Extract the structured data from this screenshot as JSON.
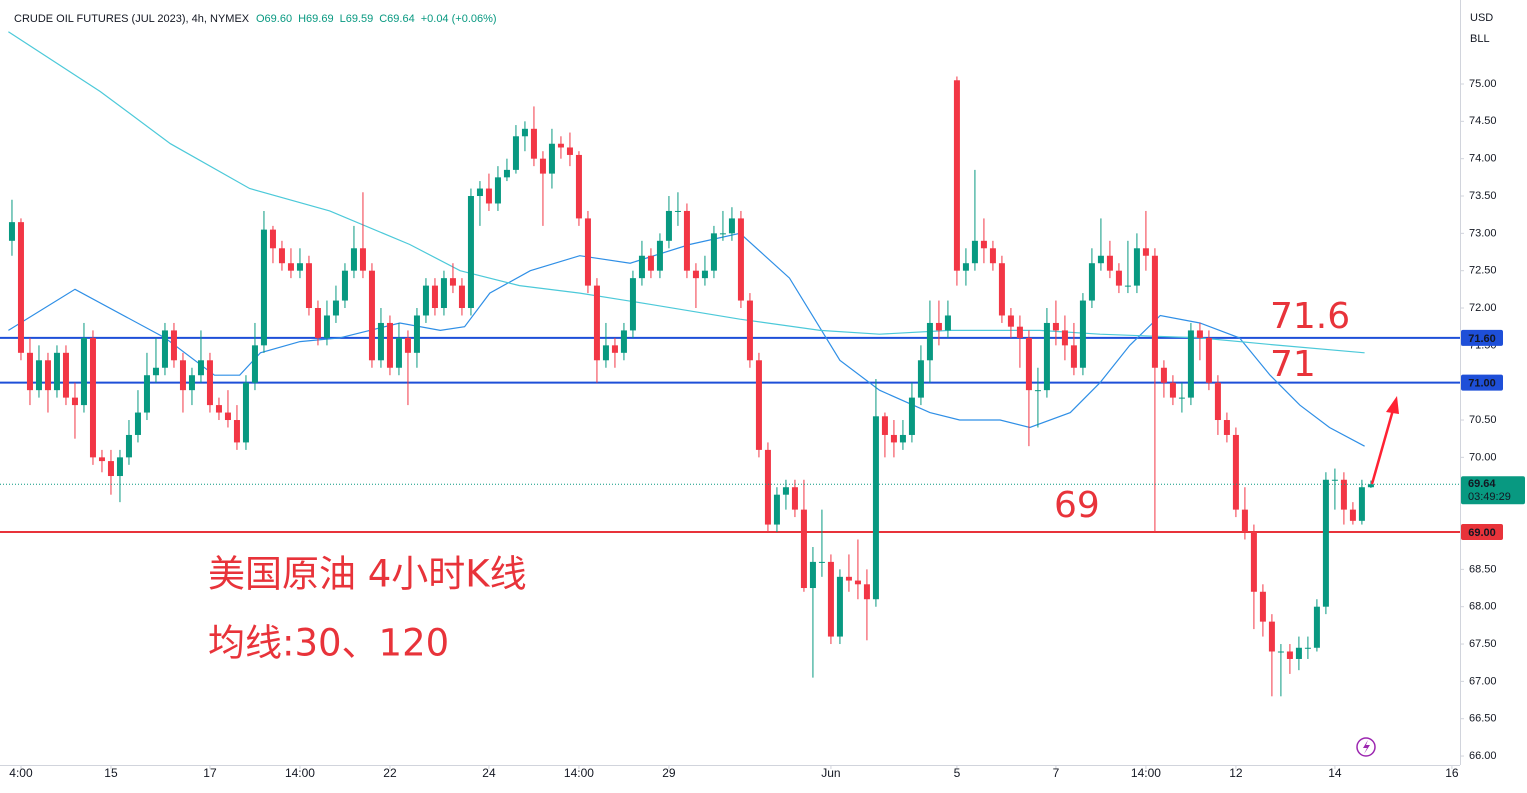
{
  "chart_data": {
    "type": "candlestick",
    "title": "CRUDE OIL FUTURES (JUL 2023), 4h, NYMEX",
    "ohlc_labels": [
      "O69.60",
      "H69.69",
      "L69.59",
      "C69.64",
      "+0.04 (+0.06%)"
    ],
    "currency": "USD",
    "unit": "BLL",
    "up_color": "#089981",
    "down_color": "#f23645",
    "xlim": [
      -1.33,
      160.9
    ],
    "xticks": [
      {
        "value": 1,
        "label": "4:00"
      },
      {
        "value": 11,
        "label": "15"
      },
      {
        "value": 22,
        "label": "17"
      },
      {
        "value": 32,
        "label": "14:00"
      },
      {
        "value": 42,
        "label": "22"
      },
      {
        "value": 53,
        "label": "24"
      },
      {
        "value": 63,
        "label": "14:00"
      },
      {
        "value": 73,
        "label": "29"
      },
      {
        "value": 91,
        "label": "Jun"
      },
      {
        "value": 105,
        "label": "5"
      },
      {
        "value": 116,
        "label": "7"
      },
      {
        "value": 126,
        "label": "14:00"
      },
      {
        "value": 136,
        "label": "12"
      },
      {
        "value": 147,
        "label": "14"
      },
      {
        "value": 160,
        "label": "16"
      }
    ],
    "ylim": [
      65.88,
      76.125
    ],
    "yticks": [
      {
        "value": 66,
        "label": "66.00"
      },
      {
        "value": 66.5,
        "label": "66.50"
      },
      {
        "value": 67,
        "label": "67.00"
      },
      {
        "value": 67.5,
        "label": "67.50"
      },
      {
        "value": 68,
        "label": "68.00"
      },
      {
        "value": 68.5,
        "label": "68.50"
      },
      {
        "value": 69,
        "label": "69.00"
      },
      {
        "value": 69.5,
        "label": "69.50"
      },
      {
        "value": 70,
        "label": "70.00"
      },
      {
        "value": 70.5,
        "label": "70.50"
      },
      {
        "value": 71,
        "label": "71.00"
      },
      {
        "value": 71.5,
        "label": "71.50"
      },
      {
        "value": 72,
        "label": "72.00"
      },
      {
        "value": 72.5,
        "label": "72.50"
      },
      {
        "value": 73,
        "label": "73.00"
      },
      {
        "value": 73.5,
        "label": "73.50"
      },
      {
        "value": 74,
        "label": "74.00"
      },
      {
        "value": 74.5,
        "label": "74.50"
      },
      {
        "value": 75,
        "label": "75.00"
      }
    ],
    "grid": false,
    "candles": [
      [
        72.9,
        73.45,
        72.7,
        73.15
      ],
      [
        73.15,
        73.2,
        71.3,
        71.4
      ],
      [
        71.4,
        71.6,
        70.7,
        70.9
      ],
      [
        70.9,
        71.5,
        70.8,
        71.3
      ],
      [
        71.3,
        71.4,
        70.6,
        70.9
      ],
      [
        70.9,
        71.5,
        70.8,
        71.4
      ],
      [
        71.4,
        71.5,
        70.7,
        70.8
      ],
      [
        70.8,
        71.0,
        70.25,
        70.7
      ],
      [
        70.7,
        71.8,
        70.6,
        71.6
      ],
      [
        71.6,
        71.7,
        69.9,
        70.0
      ],
      [
        70.0,
        70.1,
        69.8,
        69.95
      ],
      [
        69.95,
        70.1,
        69.5,
        69.75
      ],
      [
        69.75,
        70.1,
        69.4,
        70.0
      ],
      [
        70.0,
        70.5,
        69.9,
        70.3
      ],
      [
        70.3,
        70.9,
        70.2,
        70.6
      ],
      [
        70.6,
        71.4,
        70.5,
        71.1
      ],
      [
        71.1,
        71.6,
        71.0,
        71.2
      ],
      [
        71.2,
        71.8,
        71.1,
        71.7
      ],
      [
        71.7,
        71.8,
        71.2,
        71.3
      ],
      [
        71.3,
        71.4,
        70.6,
        70.9
      ],
      [
        70.9,
        71.2,
        70.7,
        71.1
      ],
      [
        71.1,
        71.7,
        71.0,
        71.3
      ],
      [
        71.3,
        71.4,
        70.6,
        70.7
      ],
      [
        70.7,
        70.8,
        70.5,
        70.6
      ],
      [
        70.6,
        70.9,
        70.4,
        70.5
      ],
      [
        70.5,
        70.7,
        70.1,
        70.2
      ],
      [
        70.2,
        71.1,
        70.1,
        71.0
      ],
      [
        71.0,
        71.8,
        70.9,
        71.5
      ],
      [
        71.5,
        73.3,
        71.4,
        73.05
      ],
      [
        73.05,
        73.1,
        72.6,
        72.8
      ],
      [
        72.8,
        72.9,
        72.5,
        72.6
      ],
      [
        72.6,
        72.8,
        72.4,
        72.5
      ],
      [
        72.5,
        72.8,
        72.4,
        72.6
      ],
      [
        72.6,
        72.7,
        71.9,
        72.0
      ],
      [
        72.0,
        72.1,
        71.5,
        71.6
      ],
      [
        71.6,
        72.1,
        71.5,
        71.9
      ],
      [
        71.9,
        72.3,
        71.8,
        72.1
      ],
      [
        72.1,
        72.6,
        72.0,
        72.5
      ],
      [
        72.5,
        73.1,
        72.4,
        72.8
      ],
      [
        72.8,
        73.55,
        72.4,
        72.5
      ],
      [
        72.5,
        72.6,
        71.2,
        71.3
      ],
      [
        71.3,
        72.0,
        71.2,
        71.8
      ],
      [
        71.8,
        71.9,
        71.1,
        71.2
      ],
      [
        71.2,
        71.8,
        71.1,
        71.6
      ],
      [
        71.6,
        71.7,
        70.7,
        71.4
      ],
      [
        71.4,
        72.0,
        71.2,
        71.9
      ],
      [
        71.9,
        72.4,
        71.8,
        72.3
      ],
      [
        72.3,
        72.4,
        71.9,
        72.0
      ],
      [
        72.0,
        72.5,
        71.9,
        72.4
      ],
      [
        72.4,
        72.6,
        72.2,
        72.3
      ],
      [
        72.3,
        72.4,
        71.9,
        72.0
      ],
      [
        72.0,
        73.6,
        71.9,
        73.5
      ],
      [
        73.5,
        73.7,
        73.1,
        73.6
      ],
      [
        73.6,
        73.8,
        73.3,
        73.4
      ],
      [
        73.4,
        73.9,
        73.3,
        73.75
      ],
      [
        73.75,
        74.0,
        73.7,
        73.85
      ],
      [
        73.85,
        74.45,
        73.8,
        74.3
      ],
      [
        74.3,
        74.5,
        74.1,
        74.4
      ],
      [
        74.4,
        74.7,
        73.9,
        74.0
      ],
      [
        74.0,
        74.1,
        73.1,
        73.8
      ],
      [
        73.8,
        74.4,
        73.6,
        74.2
      ],
      [
        74.2,
        74.3,
        74.0,
        74.15
      ],
      [
        74.15,
        74.35,
        73.9,
        74.05
      ],
      [
        74.05,
        74.1,
        73.1,
        73.2
      ],
      [
        73.2,
        73.3,
        72.2,
        72.3
      ],
      [
        72.3,
        72.4,
        71.0,
        71.3
      ],
      [
        71.3,
        71.8,
        71.2,
        71.5
      ],
      [
        71.5,
        71.6,
        71.2,
        71.4
      ],
      [
        71.4,
        71.8,
        71.3,
        71.7
      ],
      [
        71.7,
        72.5,
        71.6,
        72.4
      ],
      [
        72.4,
        72.9,
        72.3,
        72.7
      ],
      [
        72.7,
        72.8,
        72.4,
        72.5
      ],
      [
        72.5,
        73.0,
        72.4,
        72.9
      ],
      [
        72.9,
        73.5,
        72.8,
        73.3
      ],
      [
        73.3,
        73.55,
        73.1,
        73.3
      ],
      [
        73.3,
        73.4,
        72.4,
        72.5
      ],
      [
        72.5,
        72.6,
        72.0,
        72.4
      ],
      [
        72.4,
        72.7,
        72.3,
        72.5
      ],
      [
        72.5,
        73.1,
        72.4,
        73.0
      ],
      [
        73.0,
        73.3,
        72.9,
        73.0
      ],
      [
        73.0,
        73.35,
        72.9,
        73.2
      ],
      [
        73.2,
        73.3,
        72.0,
        72.1
      ],
      [
        72.1,
        72.2,
        71.2,
        71.3
      ],
      [
        71.3,
        71.4,
        70.0,
        70.1
      ],
      [
        70.1,
        70.2,
        69.0,
        69.1
      ],
      [
        69.1,
        69.6,
        69.0,
        69.5
      ],
      [
        69.5,
        69.7,
        69.3,
        69.6
      ],
      [
        69.6,
        69.7,
        69.2,
        69.3
      ],
      [
        69.3,
        69.7,
        68.2,
        68.25
      ],
      [
        68.25,
        68.8,
        67.05,
        68.6
      ],
      [
        68.6,
        69.3,
        68.4,
        68.6
      ],
      [
        68.6,
        68.7,
        67.5,
        67.6
      ],
      [
        67.6,
        68.5,
        67.5,
        68.4
      ],
      [
        68.4,
        68.7,
        68.2,
        68.35
      ],
      [
        68.35,
        68.9,
        68.1,
        68.3
      ],
      [
        68.3,
        68.5,
        67.55,
        68.1
      ],
      [
        68.1,
        71.05,
        68.0,
        70.55
      ],
      [
        70.55,
        70.6,
        70.0,
        70.3
      ],
      [
        70.3,
        70.5,
        70.0,
        70.2
      ],
      [
        70.2,
        70.5,
        70.1,
        70.3
      ],
      [
        70.3,
        71.0,
        70.2,
        70.8
      ],
      [
        70.8,
        71.5,
        70.7,
        71.3
      ],
      [
        71.3,
        72.1,
        71.0,
        71.8
      ],
      [
        71.8,
        72.1,
        71.5,
        71.7
      ],
      [
        71.7,
        72.1,
        71.6,
        71.9
      ],
      [
        75.05,
        75.1,
        72.3,
        72.5
      ],
      [
        72.5,
        72.8,
        72.3,
        72.6
      ],
      [
        72.6,
        73.85,
        72.5,
        72.9
      ],
      [
        72.9,
        73.2,
        72.6,
        72.8
      ],
      [
        72.8,
        72.9,
        72.5,
        72.6
      ],
      [
        72.6,
        72.7,
        71.8,
        71.9
      ],
      [
        71.9,
        72.0,
        71.6,
        71.75
      ],
      [
        71.75,
        71.9,
        71.2,
        71.6
      ],
      [
        71.6,
        71.7,
        70.15,
        70.9
      ],
      [
        70.9,
        71.2,
        70.4,
        70.9
      ],
      [
        70.9,
        72.0,
        70.8,
        71.8
      ],
      [
        71.8,
        72.1,
        71.5,
        71.7
      ],
      [
        71.7,
        71.9,
        71.3,
        71.5
      ],
      [
        71.5,
        71.8,
        71.1,
        71.2
      ],
      [
        71.2,
        72.2,
        71.1,
        72.1
      ],
      [
        72.1,
        72.8,
        72.0,
        72.6
      ],
      [
        72.6,
        73.2,
        72.5,
        72.7
      ],
      [
        72.7,
        72.9,
        72.4,
        72.5
      ],
      [
        72.5,
        72.6,
        72.2,
        72.3
      ],
      [
        72.3,
        72.9,
        72.2,
        72.3
      ],
      [
        72.3,
        73.0,
        72.2,
        72.8
      ],
      [
        72.8,
        73.3,
        72.5,
        72.7
      ],
      [
        72.7,
        72.8,
        69.0,
        71.2
      ],
      [
        71.2,
        71.3,
        70.8,
        71.0
      ],
      [
        71.0,
        71.1,
        70.7,
        70.8
      ],
      [
        70.8,
        71.0,
        70.6,
        70.8
      ],
      [
        70.8,
        71.8,
        70.7,
        71.7
      ],
      [
        71.7,
        71.8,
        71.3,
        71.6
      ],
      [
        71.6,
        71.7,
        70.9,
        71.0
      ],
      [
        71.0,
        71.1,
        70.3,
        70.5
      ],
      [
        70.5,
        70.6,
        70.2,
        70.3
      ],
      [
        70.3,
        70.4,
        69.2,
        69.3
      ],
      [
        69.3,
        69.6,
        68.9,
        69.0
      ],
      [
        69.0,
        69.1,
        67.7,
        68.2
      ],
      [
        68.2,
        68.3,
        67.6,
        67.8
      ],
      [
        67.8,
        67.9,
        66.8,
        67.4
      ],
      [
        67.4,
        67.5,
        66.8,
        67.4
      ],
      [
        67.4,
        67.5,
        67.1,
        67.3
      ],
      [
        67.3,
        67.6,
        67.15,
        67.45
      ],
      [
        67.45,
        67.6,
        67.3,
        67.45
      ],
      [
        67.45,
        68.1,
        67.4,
        68.0
      ],
      [
        68.0,
        69.8,
        67.9,
        69.7
      ],
      [
        69.7,
        69.85,
        69.3,
        69.7
      ],
      [
        69.7,
        69.8,
        69.1,
        69.3
      ],
      [
        69.3,
        69.4,
        69.1,
        69.15
      ],
      [
        69.15,
        69.7,
        69.1,
        69.6
      ],
      [
        69.6,
        69.69,
        69.59,
        69.64
      ]
    ],
    "lines": [
      {
        "color": "#2f8fe6",
        "x": [
          -0.4,
          7,
          17,
          22.5,
          25.3,
          27.6,
          32,
          36.4,
          43.1,
          47.6,
          50.3,
          53.1,
          57.6,
          63.1,
          68.7,
          75.3,
          80.9,
          86.4,
          92,
          96.4,
          102,
          105.3,
          109.8,
          113.1,
          117.6,
          120.9,
          124.2,
          127.6,
          132,
          136.4,
          139.8,
          143.1,
          146.4,
          150.3
        ],
        "values": [
          71.7,
          72.25,
          71.6,
          71.1,
          71.1,
          71.4,
          71.55,
          71.6,
          71.8,
          71.7,
          71.75,
          72.2,
          72.5,
          72.7,
          72.6,
          72.85,
          73.0,
          72.4,
          71.3,
          70.9,
          70.6,
          70.5,
          70.5,
          70.4,
          70.6,
          71.0,
          71.5,
          71.9,
          71.8,
          71.6,
          71.1,
          70.7,
          70.4,
          70.15
        ]
      },
      {
        "color": "#4cc9d9",
        "x": [
          -0.4,
          9.8,
          17.6,
          26.4,
          35.3,
          44.2,
          49.8,
          56.4,
          63.1,
          70.9,
          80.9,
          89.8,
          96.4,
          104.2,
          114.2,
          120.9,
          132,
          140.9,
          150.3
        ],
        "values": [
          75.7,
          74.9,
          74.2,
          73.6,
          73.3,
          72.85,
          72.5,
          72.3,
          72.2,
          72.05,
          71.85,
          71.7,
          71.65,
          71.7,
          71.7,
          71.65,
          71.6,
          71.5,
          71.4
        ]
      }
    ],
    "levels": [
      {
        "value": 71.6,
        "label": "71.60",
        "color": "#1e4fd8"
      },
      {
        "value": 71,
        "label": "71.00",
        "color": "#1e4fd8"
      },
      {
        "value": 69,
        "label": "69.00",
        "color": "#e8333a"
      }
    ],
    "last_price": {
      "value": 69.64,
      "label": "69.64",
      "countdown": "03:49:29",
      "color": "#089981"
    },
    "annotations": [
      "71.6",
      "71",
      "69",
      "美国原油 4小时K线",
      "均线:30、120"
    ]
  }
}
